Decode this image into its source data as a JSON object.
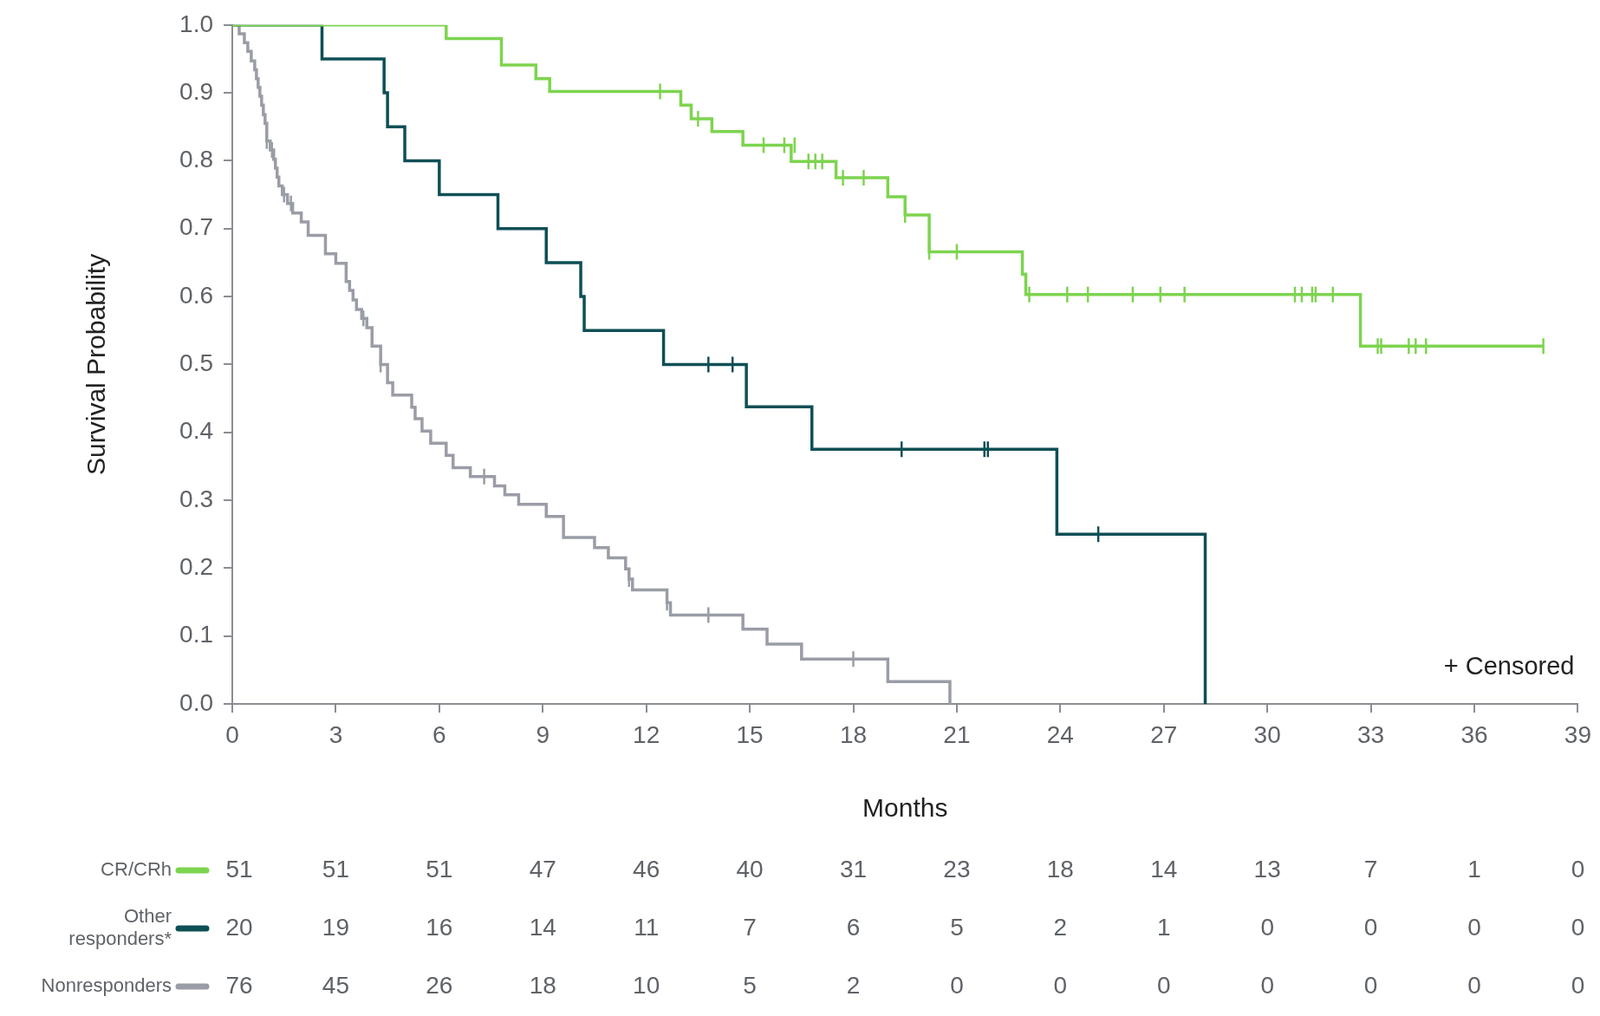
{
  "chart_data": {
    "type": "step",
    "x_label": "Months",
    "y_label": "Survival Probability",
    "annotations": [
      "+ Censored"
    ],
    "xlim": [
      0,
      39
    ],
    "xticks": [
      0,
      3,
      6,
      9,
      12,
      15,
      18,
      21,
      24,
      27,
      30,
      33,
      36,
      39
    ],
    "ylim": [
      0,
      1
    ],
    "yticks": [
      {
        "value": 0,
        "label": "0.0"
      },
      0.1,
      0.2,
      0.3,
      0.4,
      0.5,
      0.6,
      0.7,
      0.8,
      0.9,
      {
        "value": 1,
        "label": "1.0"
      }
    ],
    "grid": false,
    "line_style": "solid",
    "series": [
      {
        "name": "CR/CRh",
        "color": "#7dd44f",
        "marker": "|",
        "x": [
          0,
          6.2,
          7.8,
          8.8,
          9.2,
          13.0,
          13.3,
          13.9,
          14.8,
          16.2,
          17.5,
          19.0,
          19.5,
          20.2,
          22.9,
          23.0,
          32.7,
          38.0
        ],
        "values": [
          1,
          0.98,
          0.941,
          0.921,
          0.902,
          0.882,
          0.862,
          0.843,
          0.823,
          0.799,
          0.775,
          0.747,
          0.72,
          0.666,
          0.633,
          0.603,
          0.527,
          0.527
        ],
        "censored_x": [
          12.4,
          13.5,
          15.4,
          16.0,
          16.3,
          16.7,
          16.9,
          17.1,
          17.7,
          18.3,
          19.5,
          20.2,
          21.0,
          23.1,
          24.2,
          24.8,
          26.1,
          26.9,
          27.6,
          30.8,
          31.0,
          31.3,
          31.4,
          31.9,
          33.2,
          33.3,
          34.1,
          34.3,
          34.6,
          38.0
        ],
        "censored_values": [
          0.902,
          0.862,
          0.823,
          0.823,
          0.823,
          0.799,
          0.799,
          0.799,
          0.775,
          0.775,
          0.72,
          0.666,
          0.666,
          0.603,
          0.603,
          0.603,
          0.603,
          0.603,
          0.603,
          0.603,
          0.603,
          0.603,
          0.603,
          0.603,
          0.527,
          0.527,
          0.527,
          0.527,
          0.527,
          0.527
        ],
        "at_risk": [
          51,
          51,
          51,
          47,
          46,
          40,
          31,
          23,
          18,
          14,
          13,
          7,
          1,
          0
        ]
      },
      {
        "name": "Other responders*",
        "color": "#0e4f55",
        "marker": "|",
        "x": [
          0,
          2.6,
          4.4,
          4.5,
          5.0,
          6.0,
          7.7,
          9.1,
          10.1,
          10.2,
          12.5,
          14.9,
          16.8,
          23.9,
          28.2
        ],
        "values": [
          1,
          0.95,
          0.9,
          0.85,
          0.8,
          0.75,
          0.7,
          0.65,
          0.6,
          0.55,
          0.5,
          0.4375,
          0.375,
          0.25,
          0
        ],
        "censored_x": [
          13.8,
          14.5,
          19.4,
          21.8,
          21.9,
          25.1
        ],
        "censored_values": [
          0.5,
          0.5,
          0.375,
          0.375,
          0.375,
          0.25
        ],
        "at_risk": [
          20,
          19,
          16,
          14,
          11,
          7,
          6,
          5,
          2,
          1,
          0,
          0,
          0,
          0
        ]
      },
      {
        "name": "Nonresponders",
        "color": "#9a9da6",
        "marker": "|",
        "x": [
          0,
          0.2,
          0.35,
          0.45,
          0.55,
          0.65,
          0.7,
          0.75,
          0.8,
          0.85,
          0.9,
          0.95,
          1.0,
          1.1,
          1.2,
          1.25,
          1.3,
          1.35,
          1.45,
          1.6,
          1.75,
          2.0,
          2.2,
          2.7,
          3.0,
          3.3,
          3.4,
          3.5,
          3.6,
          3.75,
          3.9,
          4.05,
          4.3,
          4.5,
          4.65,
          5.2,
          5.3,
          5.5,
          5.75,
          6.2,
          6.4,
          6.9,
          7.6,
          7.9,
          8.3,
          9.1,
          9.6,
          10.5,
          10.9,
          11.4,
          11.5,
          11.6,
          12.6,
          12.7,
          14.8,
          15.5,
          16.5,
          19.0,
          20.8
        ],
        "values": [
          1,
          0.987,
          0.974,
          0.961,
          0.947,
          0.934,
          0.921,
          0.908,
          0.895,
          0.882,
          0.868,
          0.855,
          0.829,
          0.816,
          0.802,
          0.789,
          0.776,
          0.763,
          0.75,
          0.737,
          0.723,
          0.71,
          0.69,
          0.663,
          0.649,
          0.622,
          0.609,
          0.595,
          0.581,
          0.568,
          0.554,
          0.527,
          0.5,
          0.473,
          0.455,
          0.437,
          0.42,
          0.402,
          0.384,
          0.366,
          0.348,
          0.335,
          0.321,
          0.308,
          0.294,
          0.276,
          0.245,
          0.23,
          0.215,
          0.199,
          0.184,
          0.168,
          0.149,
          0.131,
          0.11,
          0.088,
          0.066,
          0.033,
          0
        ],
        "censored_x": [
          1.0,
          1.15,
          1.5,
          1.7,
          3.8,
          4.3,
          7.3,
          11.5,
          12.6,
          13.8,
          18.0
        ],
        "censored_values": [
          0.829,
          0.816,
          0.75,
          0.737,
          0.568,
          0.5,
          0.335,
          0.184,
          0.149,
          0.131,
          0.066
        ],
        "at_risk": [
          76,
          45,
          26,
          18,
          10,
          5,
          2,
          0,
          0,
          0,
          0,
          0,
          0,
          0
        ]
      }
    ]
  }
}
